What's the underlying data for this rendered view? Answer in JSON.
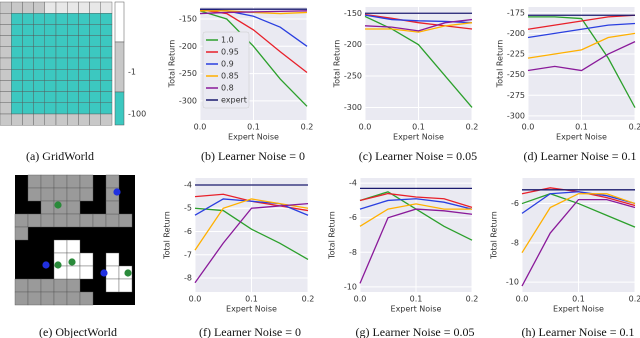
{
  "chart_data": [
    {
      "type": "line",
      "title": "(b) Learner Noise = 0",
      "xlabel": "Expert Noise",
      "ylabel": "Total Return",
      "x": [
        0,
        0.05,
        0.1,
        0.15,
        0.2
      ],
      "xlim": [
        0,
        0.2
      ],
      "xticks": [
        {
          "value": 0,
          "label": "0.0"
        },
        {
          "value": 0.1,
          "label": "0.1"
        },
        {
          "value": 0.2,
          "label": "0.2"
        }
      ],
      "ylim": [
        -335,
        -128
      ],
      "yticks": [
        -150,
        -200,
        -250,
        -300
      ],
      "grid": true,
      "legend": "center left",
      "series": [
        {
          "name": "1.0",
          "color": "#2ca02c",
          "values": [
            -135,
            -150,
            -200,
            -260,
            -310
          ]
        },
        {
          "name": "0.95",
          "color": "#e8202a",
          "values": [
            -133,
            -140,
            -170,
            -210,
            -248
          ]
        },
        {
          "name": "0.9",
          "color": "#2a3fe0",
          "values": [
            -132,
            -135,
            -145,
            -165,
            -200
          ]
        },
        {
          "name": "0.85",
          "color": "#ffb000",
          "values": [
            -135,
            -135,
            -138,
            -140,
            -138
          ]
        },
        {
          "name": "0.8",
          "color": "#8a1a9a",
          "values": [
            -140,
            -138,
            -137,
            -136,
            -135
          ]
        },
        {
          "name": "expert",
          "color": "#1a1a6e",
          "values": [
            -132,
            -132,
            -132,
            -132,
            -132
          ]
        }
      ]
    },
    {
      "type": "line",
      "title": "(c) Learner Noise = 0.05",
      "xlabel": "Expert Noise",
      "ylabel": "Total Return",
      "x": [
        0,
        0.05,
        0.1,
        0.15,
        0.2
      ],
      "xlim": [
        0,
        0.2
      ],
      "xticks": [
        {
          "value": 0,
          "label": "0.0"
        },
        {
          "value": 0.1,
          "label": "0.1"
        },
        {
          "value": 0.2,
          "label": "0.2"
        }
      ],
      "ylim": [
        -320,
        -140
      ],
      "yticks": [
        -150,
        -200,
        -250,
        -300
      ],
      "grid": true,
      "series": [
        {
          "color": "#2ca02c",
          "values": [
            -155,
            -175,
            -200,
            -250,
            -300
          ]
        },
        {
          "color": "#e8202a",
          "values": [
            -152,
            -158,
            -165,
            -170,
            -175
          ]
        },
        {
          "color": "#2a3fe0",
          "values": [
            -153,
            -160,
            -162,
            -163,
            -165
          ]
        },
        {
          "color": "#ffb000",
          "values": [
            -175,
            -175,
            -180,
            -170,
            -165
          ]
        },
        {
          "color": "#8a1a9a",
          "values": [
            -170,
            -172,
            -178,
            -165,
            -160
          ]
        },
        {
          "color": "#1a1a6e",
          "values": [
            -150,
            -150,
            -150,
            -150,
            -150
          ]
        }
      ]
    },
    {
      "type": "line",
      "title": "(d) Learner Noise = 0.1",
      "xlabel": "Expert Noise",
      "ylabel": "Total Return",
      "x": [
        0,
        0.05,
        0.1,
        0.15,
        0.2
      ],
      "xlim": [
        0,
        0.2
      ],
      "xticks": [
        {
          "value": 0,
          "label": "0.0"
        },
        {
          "value": 0.1,
          "label": "0.1"
        },
        {
          "value": 0.2,
          "label": "0.2"
        }
      ],
      "ylim": [
        -305,
        -168
      ],
      "yticks": [
        -175,
        -200,
        -225,
        -250,
        -275,
        -300
      ],
      "grid": true,
      "series": [
        {
          "color": "#2ca02c",
          "values": [
            -180,
            -180,
            -182,
            -230,
            -290
          ]
        },
        {
          "color": "#e8202a",
          "values": [
            -195,
            -190,
            -185,
            -180,
            -178
          ]
        },
        {
          "color": "#2a3fe0",
          "values": [
            -205,
            -200,
            -195,
            -190,
            -188
          ]
        },
        {
          "color": "#ffb000",
          "values": [
            -230,
            -225,
            -220,
            -205,
            -200
          ]
        },
        {
          "color": "#8a1a9a",
          "values": [
            -245,
            -240,
            -245,
            -225,
            -210
          ]
        },
        {
          "color": "#1a1a6e",
          "values": [
            -178,
            -178,
            -178,
            -178,
            -178
          ]
        }
      ]
    },
    {
      "type": "line",
      "title": "(f) Learner Noise = 0",
      "xlabel": "Expert Noise",
      "ylabel": "Total Return",
      "x": [
        0,
        0.05,
        0.1,
        0.15,
        0.2
      ],
      "xlim": [
        0,
        0.2
      ],
      "xticks": [
        {
          "value": 0,
          "label": "0.0"
        },
        {
          "value": 0.1,
          "label": "0.1"
        },
        {
          "value": 0.2,
          "label": "0.2"
        }
      ],
      "ylim": [
        -8.6,
        -3.7
      ],
      "yticks": [
        -4,
        -5,
        -6,
        -7,
        -8
      ],
      "grid": true,
      "series": [
        {
          "color": "#2ca02c",
          "values": [
            -5.0,
            -5.1,
            -5.9,
            -6.5,
            -7.2
          ]
        },
        {
          "color": "#e8202a",
          "values": [
            -4.5,
            -4.4,
            -4.7,
            -4.9,
            -5.1
          ]
        },
        {
          "color": "#2a3fe0",
          "values": [
            -5.3,
            -4.6,
            -4.7,
            -4.8,
            -5.3
          ]
        },
        {
          "color": "#ffb000",
          "values": [
            -6.8,
            -5.0,
            -4.6,
            -4.8,
            -5.0
          ]
        },
        {
          "color": "#8a1a9a",
          "values": [
            -8.2,
            -6.5,
            -5.0,
            -4.9,
            -4.8
          ]
        },
        {
          "color": "#1a1a6e",
          "values": [
            -4.0,
            -4.0,
            -4.0,
            -4.0,
            -4.0
          ]
        }
      ]
    },
    {
      "type": "line",
      "title": "(g) Learner Noise = 0.05",
      "xlabel": "Expert Noise",
      "ylabel": "Total Return",
      "x": [
        0,
        0.05,
        0.1,
        0.15,
        0.2
      ],
      "xlim": [
        0,
        0.2
      ],
      "xticks": [
        {
          "value": 0,
          "label": "0.0"
        },
        {
          "value": 0.1,
          "label": "0.1"
        },
        {
          "value": 0.2,
          "label": "0.2"
        }
      ],
      "ylim": [
        -10.3,
        -3.7
      ],
      "yticks": [
        -4,
        -6,
        -8,
        -10
      ],
      "grid": true,
      "series": [
        {
          "color": "#2ca02c",
          "values": [
            -5.0,
            -4.5,
            -5.5,
            -6.5,
            -7.3
          ]
        },
        {
          "color": "#e8202a",
          "values": [
            -5.0,
            -4.6,
            -4.8,
            -4.9,
            -5.4
          ]
        },
        {
          "color": "#2a3fe0",
          "values": [
            -5.5,
            -5.0,
            -4.9,
            -5.1,
            -5.5
          ]
        },
        {
          "color": "#ffb000",
          "values": [
            -6.5,
            -5.5,
            -5.2,
            -5.5,
            -5.5
          ]
        },
        {
          "color": "#8a1a9a",
          "values": [
            -9.8,
            -6.0,
            -5.5,
            -5.6,
            -5.8
          ]
        },
        {
          "color": "#1a1a6e",
          "values": [
            -4.3,
            -4.3,
            -4.3,
            -4.3,
            -4.3
          ]
        }
      ]
    },
    {
      "type": "line",
      "title": "(h) Learner Noise = 0.1",
      "xlabel": "Expert Noise",
      "ylabel": "Total Return",
      "x": [
        0,
        0.05,
        0.1,
        0.15,
        0.2
      ],
      "xlim": [
        0,
        0.2
      ],
      "xticks": [
        {
          "value": 0,
          "label": "0.0"
        },
        {
          "value": 0.1,
          "label": "0.1"
        },
        {
          "value": 0.2,
          "label": "0.2"
        }
      ],
      "ylim": [
        -10.5,
        -4.7
      ],
      "yticks": [
        -6,
        -8,
        -10
      ],
      "grid": true,
      "series": [
        {
          "color": "#2ca02c",
          "values": [
            -6.0,
            -5.5,
            -6.0,
            -6.6,
            -7.2
          ]
        },
        {
          "color": "#e8202a",
          "values": [
            -5.5,
            -5.2,
            -5.4,
            -5.7,
            -6.1
          ]
        },
        {
          "color": "#2a3fe0",
          "values": [
            -6.5,
            -5.5,
            -5.4,
            -5.6,
            -6.0
          ]
        },
        {
          "color": "#ffb000",
          "values": [
            -8.5,
            -6.2,
            -5.5,
            -5.5,
            -6.0
          ]
        },
        {
          "color": "#8a1a9a",
          "values": [
            -10.2,
            -7.5,
            -5.8,
            -5.8,
            -6.2
          ]
        },
        {
          "color": "#1a1a6e",
          "values": [
            -5.3,
            -5.3,
            -5.3,
            -5.3,
            -5.3
          ]
        }
      ]
    }
  ],
  "figures": [
    {
      "caption": "(a) GridWorld",
      "colorbar_ticks": [
        -1,
        -100
      ]
    },
    {
      "caption": "(e) ObjectWorld"
    }
  ]
}
